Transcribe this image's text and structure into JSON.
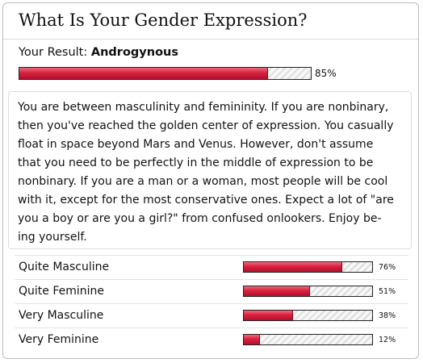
{
  "quiz": {
    "title": "What Is Your Gender Expression?",
    "result_label": "Your Result:",
    "result_value": "Androgynous",
    "result_percent": 85,
    "result_percent_text": "85%",
    "description_lines": [
      "You are between masculinity and femininity. If you are nonbinary,",
      "then you've reached the golden center of expression. You casually",
      "float in space beyond Mars and Venus. However, don't assume",
      "that you need to be perfectly in the middle of expression to be",
      "nonbinary. If you are a man or a woman, most people will be cool",
      "with it, except for the most conservative ones. Expect a lot of \"are",
      "you a boy or are you a girl?\" from confused onlookers. Enjoy be-",
      "ing yourself."
    ]
  },
  "other_results": [
    {
      "label": "Quite Masculine",
      "percent": 76,
      "percent_text": "76%"
    },
    {
      "label": "Quite Feminine",
      "percent": 51,
      "percent_text": "51%"
    },
    {
      "label": "Very Masculine",
      "percent": 38,
      "percent_text": "38%"
    },
    {
      "label": "Very Feminine",
      "percent": 12,
      "percent_text": "12%"
    }
  ],
  "colors": {
    "bar_fill": "#d8213f",
    "bar_empty": "#dcdcdc",
    "border": "#bdbdbd"
  }
}
